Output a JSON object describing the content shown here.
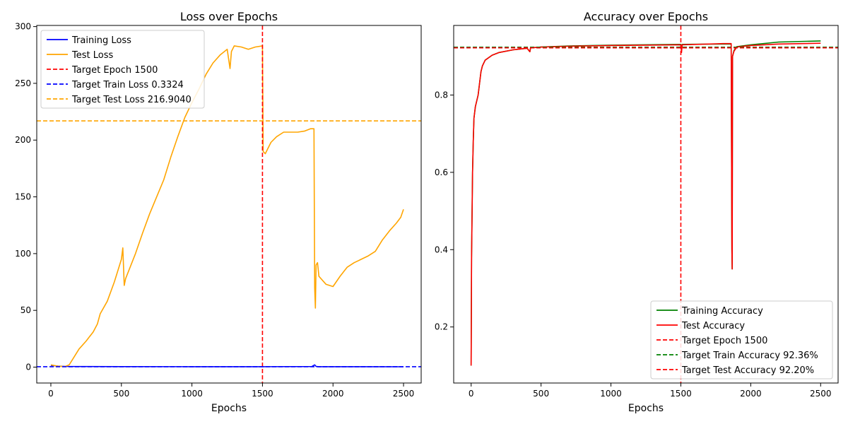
{
  "chart_data": [
    {
      "type": "line",
      "title": "Loss over Epochs",
      "xlabel": "Epochs",
      "ylabel": "",
      "xlim": [
        -100,
        2625
      ],
      "ylim": [
        -14,
        301
      ],
      "xticks": [
        0,
        500,
        1000,
        1500,
        2000,
        2500
      ],
      "yticks": [
        0,
        50,
        100,
        150,
        200,
        250,
        300
      ],
      "grid": false,
      "legend_position": "upper left",
      "series": [
        {
          "name": "Training Loss",
          "color": "#0000ff",
          "x": [
            0,
            50,
            100,
            200,
            500,
            1000,
            1500,
            1850,
            1860,
            1870,
            1880,
            1900,
            2000,
            2500
          ],
          "y": [
            1.5,
            0.9,
            0.6,
            0.5,
            0.45,
            0.4,
            0.38,
            0.5,
            1.3,
            2.0,
            0.6,
            0.4,
            0.35,
            0.3
          ]
        },
        {
          "name": "Test Loss",
          "color": "#ffa500",
          "x": [
            0,
            50,
            100,
            130,
            160,
            200,
            250,
            300,
            330,
            350,
            400,
            450,
            500,
            510,
            520,
            530,
            600,
            650,
            700,
            750,
            800,
            850,
            900,
            950,
            1000,
            1050,
            1100,
            1150,
            1200,
            1250,
            1270,
            1280,
            1300,
            1350,
            1400,
            1450,
            1500,
            1505,
            1520,
            1560,
            1600,
            1650,
            1700,
            1750,
            1800,
            1840,
            1865,
            1870,
            1875,
            1880,
            1890,
            1900,
            1950,
            2000,
            2050,
            2100,
            2150,
            2200,
            2250,
            2300,
            2350,
            2400,
            2450,
            2480,
            2500
          ],
          "y": [
            2.0,
            0.8,
            0.5,
            2.0,
            8.0,
            16.0,
            23.0,
            31.0,
            38.0,
            47.0,
            58.0,
            75.0,
            95.0,
            105.0,
            72.0,
            78.0,
            100.0,
            118.0,
            135.0,
            150.0,
            165.0,
            185.0,
            203.0,
            220.0,
            233.0,
            245.0,
            258.0,
            268.0,
            275.0,
            280.0,
            263.0,
            278.0,
            283.0,
            282.0,
            280.0,
            282.0,
            283.0,
            190.0,
            188.0,
            198.0,
            203.0,
            207.0,
            207.0,
            207.0,
            208.0,
            210.0,
            210.0,
            70.0,
            52.0,
            90.0,
            92.0,
            80.0,
            73.0,
            71.0,
            80.0,
            88.0,
            92.0,
            95.0,
            98.0,
            102.0,
            112.0,
            120.0,
            127.0,
            132.0,
            139.0
          ]
        }
      ],
      "reference_lines": [
        {
          "name": "Target Epoch 1500",
          "orientation": "vertical",
          "value": 1500,
          "color": "#ff0000"
        },
        {
          "name": "Target Train Loss 0.3324",
          "orientation": "horizontal",
          "value": 0.3324,
          "color": "#0000ff"
        },
        {
          "name": "Target Test Loss 216.9040",
          "orientation": "horizontal",
          "value": 216.904,
          "color": "#ffa500"
        }
      ]
    },
    {
      "type": "line",
      "title": "Accuracy over Epochs",
      "xlabel": "Epochs",
      "ylabel": "",
      "xlim": [
        -125,
        2625
      ],
      "ylim": [
        0.055,
        0.98
      ],
      "xticks": [
        0,
        500,
        1000,
        1500,
        2000,
        2500
      ],
      "yticks": [
        0.2,
        0.4,
        0.6,
        0.8
      ],
      "grid": false,
      "legend_position": "lower right",
      "series": [
        {
          "name": "Training Accuracy",
          "color": "#008000",
          "x": [
            0,
            3,
            10,
            15,
            20,
            30,
            50,
            70,
            80,
            100,
            150,
            200,
            300,
            400,
            420,
            425,
            500,
            700,
            1000,
            1500,
            1505,
            1510,
            1800,
            1860,
            1865,
            1867,
            1870,
            1880,
            1900,
            2000,
            2200,
            2500
          ],
          "y": [
            0.1,
            0.38,
            0.6,
            0.68,
            0.74,
            0.77,
            0.8,
            0.86,
            0.875,
            0.89,
            0.903,
            0.91,
            0.917,
            0.921,
            0.912,
            0.922,
            0.924,
            0.927,
            0.929,
            0.931,
            0.918,
            0.931,
            0.932,
            0.932,
            0.4,
            0.35,
            0.9,
            0.915,
            0.925,
            0.93,
            0.937,
            0.94
          ]
        },
        {
          "name": "Test Accuracy",
          "color": "#ff0000",
          "x": [
            0,
            3,
            10,
            15,
            20,
            30,
            50,
            70,
            80,
            100,
            150,
            200,
            300,
            400,
            420,
            425,
            500,
            700,
            1000,
            1500,
            1505,
            1510,
            1800,
            1860,
            1865,
            1867,
            1870,
            1880,
            1900,
            2000,
            2200,
            2500
          ],
          "y": [
            0.1,
            0.38,
            0.6,
            0.68,
            0.74,
            0.77,
            0.8,
            0.86,
            0.875,
            0.89,
            0.903,
            0.91,
            0.917,
            0.921,
            0.912,
            0.922,
            0.924,
            0.926,
            0.928,
            0.93,
            0.91,
            0.93,
            0.933,
            0.933,
            0.4,
            0.35,
            0.9,
            0.913,
            0.924,
            0.928,
            0.932,
            0.934
          ]
        }
      ],
      "reference_lines": [
        {
          "name": "Target Epoch 1500",
          "orientation": "vertical",
          "value": 1500,
          "color": "#ff0000"
        },
        {
          "name": "Target Train Accuracy 92.36%",
          "orientation": "horizontal",
          "value": 0.9236,
          "color": "#008000"
        },
        {
          "name": "Target Test Accuracy 92.20%",
          "orientation": "horizontal",
          "value": 0.922,
          "color": "#ff0000"
        }
      ]
    }
  ]
}
